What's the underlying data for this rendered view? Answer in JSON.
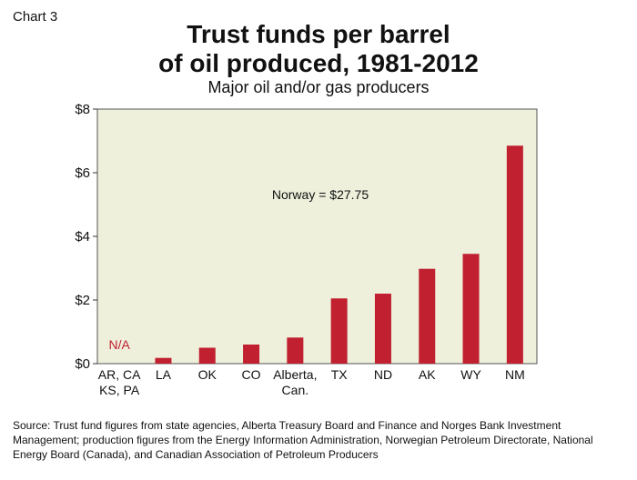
{
  "chart_label": "Chart 3",
  "title_line1": "Trust funds per barrel",
  "title_line2": "of oil produced, 1981-2012",
  "subtitle": "Major oil and/or gas producers",
  "annotation": "Norway = $27.75",
  "na_label": "N/A",
  "source": "Source: Trust fund figures from state agencies, Alberta Treasury Board and Finance and Norges Bank Investment Management; production figures from the Energy Information Administration, Norwegian Petroleum Directorate, National Energy Board (Canada), and Canadian Association of Petroleum Producers",
  "colors": {
    "bar": "#c0202f",
    "plot_bg": "#eef0dc",
    "na_text": "#c0202f"
  },
  "chart_data": {
    "type": "bar",
    "categories": [
      [
        "AR, CA",
        "KS, PA"
      ],
      [
        "LA"
      ],
      [
        "OK"
      ],
      [
        "CO"
      ],
      [
        "Alberta,",
        "Can."
      ],
      [
        "TX"
      ],
      [
        "ND"
      ],
      [
        "AK"
      ],
      [
        "WY"
      ],
      [
        "NM"
      ]
    ],
    "values": [
      null,
      0.18,
      0.5,
      0.6,
      0.82,
      2.05,
      2.2,
      2.98,
      3.45,
      6.85
    ],
    "ylim": [
      0,
      8
    ],
    "yticks": [
      0,
      2,
      4,
      6,
      8
    ],
    "ytick_labels": [
      "$0",
      "$2",
      "$4",
      "$6",
      "$8"
    ],
    "grid": false
  }
}
